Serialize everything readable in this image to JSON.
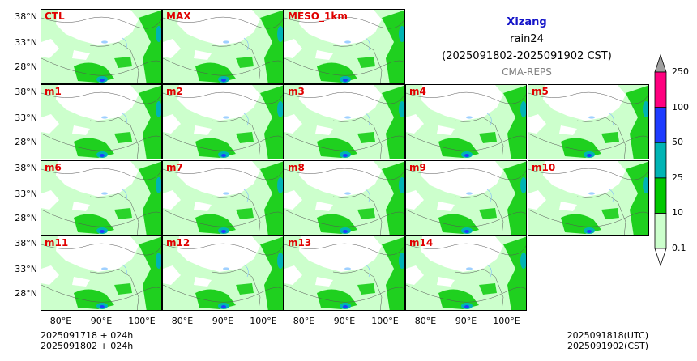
{
  "panels_row1": [
    "CTL",
    "MAX",
    "MESO_1km"
  ],
  "panels_row2": [
    "m1",
    "m2",
    "m3",
    "m4",
    "m5"
  ],
  "panels_row3": [
    "m6",
    "m7",
    "m8",
    "m9",
    "m10"
  ],
  "panels_row4": [
    "m11",
    "m12",
    "m13",
    "m14"
  ],
  "lat_ticks": [
    "38°N",
    "33°N",
    "28°N"
  ],
  "lon_ticks": [
    "80°E",
    "90°E",
    "100°E"
  ],
  "title": {
    "region": "Xizang",
    "variable": "rain24",
    "time_range": "(2025091802-2025091902 CST)",
    "model": "CMA-REPS"
  },
  "colorbar": {
    "levels": [
      "0.1",
      "10",
      "25",
      "50",
      "100",
      "250"
    ],
    "colors": [
      "#ccffcc",
      "#00c800",
      "#00b4b4",
      "#1e3cff",
      "#ff007f"
    ],
    "extend_low_color": "#ffffff",
    "extend_high_color": "#a0a0a0"
  },
  "footer_left": [
    "2025091718  +  024h",
    "2025091802  +  024h"
  ],
  "footer_right": [
    "2025091818(UTC)",
    "2025091902(CST)"
  ],
  "colors": {
    "label_red": "#e00000",
    "region_blue": "#1414c8",
    "rain_light": "#ccffcc",
    "rain_green": "#00c800",
    "rain_teal": "#00b4b4",
    "rain_blue": "#1e3cff",
    "rain_magenta": "#ff007f"
  }
}
